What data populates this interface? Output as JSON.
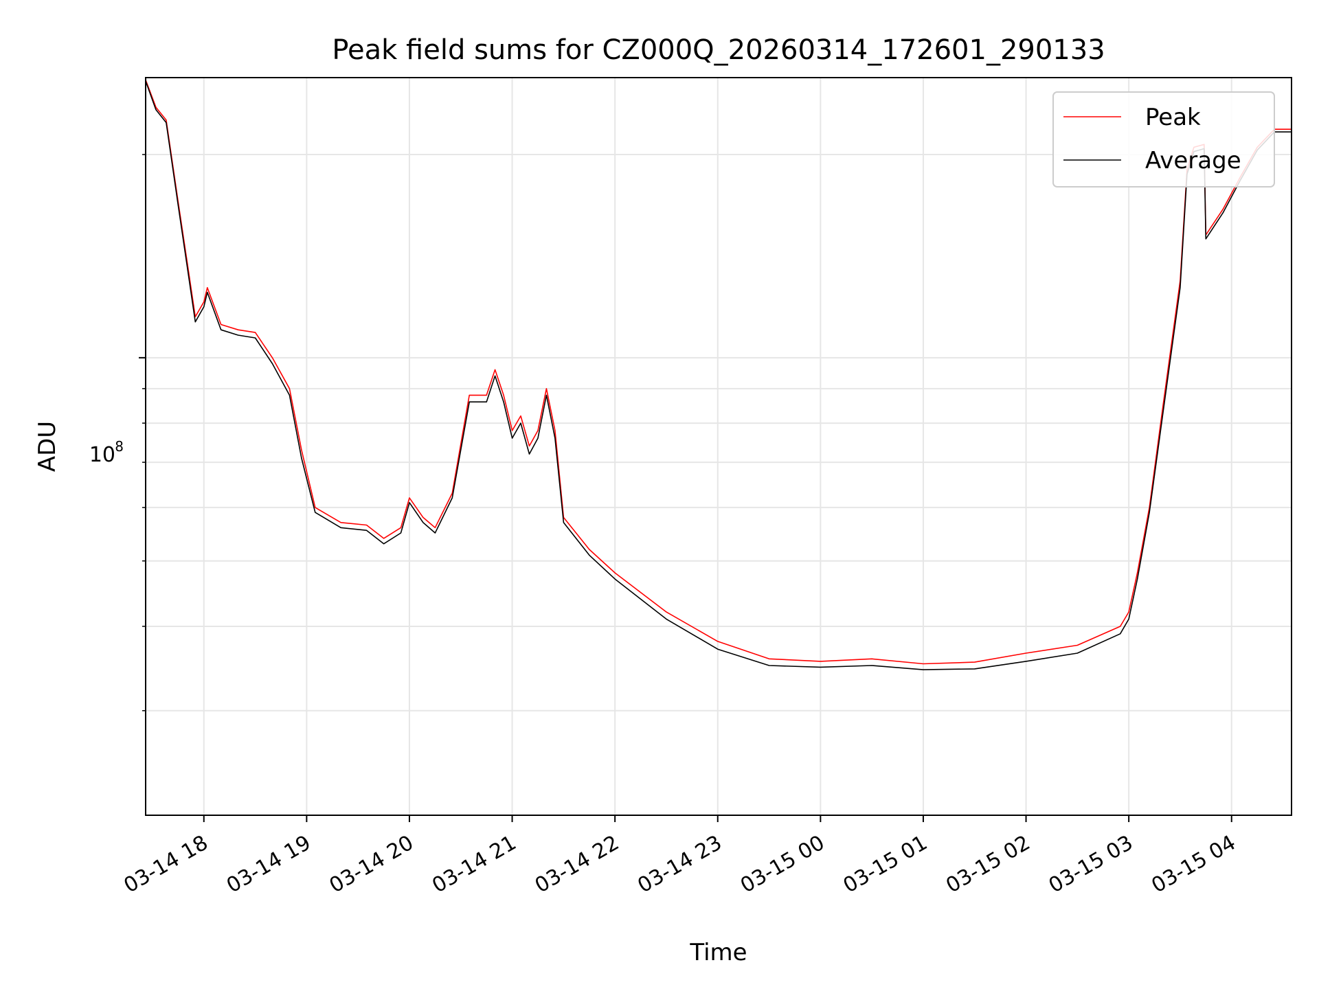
{
  "chart_data": {
    "type": "line",
    "title": "Peak field sums for CZ000Q_20260314_172601_290133",
    "xlabel": "Time",
    "ylabel": "ADU",
    "y_scale": "log",
    "y_tick_label": {
      "base": "10",
      "exp": "8",
      "value": 100000000
    },
    "xlim": [
      "03-14 17:26",
      "03-15 04:35"
    ],
    "ylim": [
      21000000,
      260000000
    ],
    "x_ticks": [
      "03-14 18",
      "03-14 19",
      "03-14 20",
      "03-14 21",
      "03-14 22",
      "03-14 23",
      "03-15 00",
      "03-15 01",
      "03-15 02",
      "03-15 03",
      "03-15 04"
    ],
    "grid": true,
    "legend_position": "top-right",
    "series": [
      {
        "name": "Peak",
        "color": "#ff0000",
        "points": [
          [
            "03-14 17:26",
            258000000
          ],
          [
            "03-14 17:32",
            235000000
          ],
          [
            "03-14 17:38",
            225000000
          ],
          [
            "03-14 17:45",
            170000000
          ],
          [
            "03-14 17:50",
            140000000
          ],
          [
            "03-14 17:55",
            115000000
          ],
          [
            "03-14 18:00",
            121000000
          ],
          [
            "03-14 18:02",
            127000000
          ],
          [
            "03-14 18:10",
            112000000
          ],
          [
            "03-14 18:20",
            110000000
          ],
          [
            "03-14 18:30",
            109000000
          ],
          [
            "03-14 18:40",
            100000000
          ],
          [
            "03-14 18:50",
            90000000
          ],
          [
            "03-14 18:57",
            73000000
          ],
          [
            "03-14 19:05",
            60000000
          ],
          [
            "03-14 19:20",
            57000000
          ],
          [
            "03-14 19:35",
            56500000
          ],
          [
            "03-14 19:45",
            54000000
          ],
          [
            "03-14 19:55",
            56000000
          ],
          [
            "03-14 20:00",
            62000000
          ],
          [
            "03-14 20:08",
            58000000
          ],
          [
            "03-14 20:15",
            56000000
          ],
          [
            "03-14 20:25",
            63000000
          ],
          [
            "03-14 20:35",
            88000000
          ],
          [
            "03-14 20:45",
            88000000
          ],
          [
            "03-14 20:50",
            96000000
          ],
          [
            "03-14 20:55",
            88000000
          ],
          [
            "03-14 21:00",
            78000000
          ],
          [
            "03-14 21:05",
            82000000
          ],
          [
            "03-14 21:10",
            74000000
          ],
          [
            "03-14 21:15",
            78000000
          ],
          [
            "03-14 21:20",
            90000000
          ],
          [
            "03-14 21:25",
            78000000
          ],
          [
            "03-14 21:30",
            58000000
          ],
          [
            "03-14 21:45",
            52000000
          ],
          [
            "03-14 22:00",
            48000000
          ],
          [
            "03-14 22:30",
            42000000
          ],
          [
            "03-14 23:00",
            38000000
          ],
          [
            "03-14 23:30",
            35800000
          ],
          [
            "03-15 00:00",
            35500000
          ],
          [
            "03-15 00:30",
            35800000
          ],
          [
            "03-15 01:00",
            35200000
          ],
          [
            "03-15 01:30",
            35400000
          ],
          [
            "03-15 02:00",
            36500000
          ],
          [
            "03-15 02:30",
            37500000
          ],
          [
            "03-15 02:55",
            40000000
          ],
          [
            "03-15 03:00",
            42000000
          ],
          [
            "03-15 03:05",
            48000000
          ],
          [
            "03-15 03:12",
            60000000
          ],
          [
            "03-15 03:20",
            85000000
          ],
          [
            "03-15 03:30",
            130000000
          ],
          [
            "03-15 03:34",
            190000000
          ],
          [
            "03-15 03:38",
            205000000
          ],
          [
            "03-15 03:44",
            207000000
          ],
          [
            "03-15 03:45",
            152000000
          ],
          [
            "03-15 03:55",
            166000000
          ],
          [
            "03-15 04:05",
            185000000
          ],
          [
            "03-15 04:15",
            205000000
          ],
          [
            "03-15 04:25",
            218000000
          ],
          [
            "03-15 04:35",
            218000000
          ]
        ]
      },
      {
        "name": "Average",
        "color": "#000000",
        "points": [
          [
            "03-14 17:26",
            257000000
          ],
          [
            "03-14 17:32",
            233000000
          ],
          [
            "03-14 17:38",
            223000000
          ],
          [
            "03-14 17:45",
            168000000
          ],
          [
            "03-14 17:50",
            138000000
          ],
          [
            "03-14 17:55",
            113000000
          ],
          [
            "03-14 18:00",
            119000000
          ],
          [
            "03-14 18:02",
            125000000
          ],
          [
            "03-14 18:10",
            110000000
          ],
          [
            "03-14 18:20",
            108000000
          ],
          [
            "03-14 18:30",
            107000000
          ],
          [
            "03-14 18:40",
            98000000
          ],
          [
            "03-14 18:50",
            88000000
          ],
          [
            "03-14 18:57",
            71000000
          ],
          [
            "03-14 19:05",
            59000000
          ],
          [
            "03-14 19:20",
            56000000
          ],
          [
            "03-14 19:35",
            55500000
          ],
          [
            "03-14 19:45",
            53000000
          ],
          [
            "03-14 19:55",
            55000000
          ],
          [
            "03-14 20:00",
            61000000
          ],
          [
            "03-14 20:08",
            57000000
          ],
          [
            "03-14 20:15",
            55000000
          ],
          [
            "03-14 20:25",
            62000000
          ],
          [
            "03-14 20:35",
            86000000
          ],
          [
            "03-14 20:45",
            86000000
          ],
          [
            "03-14 20:50",
            94000000
          ],
          [
            "03-14 20:55",
            86000000
          ],
          [
            "03-14 21:00",
            76000000
          ],
          [
            "03-14 21:05",
            80000000
          ],
          [
            "03-14 21:10",
            72000000
          ],
          [
            "03-14 21:15",
            76000000
          ],
          [
            "03-14 21:20",
            88000000
          ],
          [
            "03-14 21:25",
            76000000
          ],
          [
            "03-14 21:30",
            57000000
          ],
          [
            "03-14 21:45",
            51000000
          ],
          [
            "03-14 22:00",
            47000000
          ],
          [
            "03-14 22:30",
            41000000
          ],
          [
            "03-14 23:00",
            37000000
          ],
          [
            "03-14 23:30",
            35000000
          ],
          [
            "03-15 00:00",
            34800000
          ],
          [
            "03-15 00:30",
            35000000
          ],
          [
            "03-15 01:00",
            34500000
          ],
          [
            "03-15 01:30",
            34600000
          ],
          [
            "03-15 02:00",
            35500000
          ],
          [
            "03-15 02:30",
            36500000
          ],
          [
            "03-15 02:55",
            39000000
          ],
          [
            "03-15 03:00",
            41000000
          ],
          [
            "03-15 03:05",
            47000000
          ],
          [
            "03-15 03:12",
            59000000
          ],
          [
            "03-15 03:20",
            83000000
          ],
          [
            "03-15 03:30",
            127000000
          ],
          [
            "03-15 03:34",
            187000000
          ],
          [
            "03-15 03:38",
            202000000
          ],
          [
            "03-15 03:44",
            204000000
          ],
          [
            "03-15 03:45",
            150000000
          ],
          [
            "03-15 03:55",
            164000000
          ],
          [
            "03-15 04:05",
            183000000
          ],
          [
            "03-15 04:15",
            203000000
          ],
          [
            "03-15 04:25",
            216000000
          ],
          [
            "03-15 04:35",
            216000000
          ]
        ]
      }
    ]
  }
}
